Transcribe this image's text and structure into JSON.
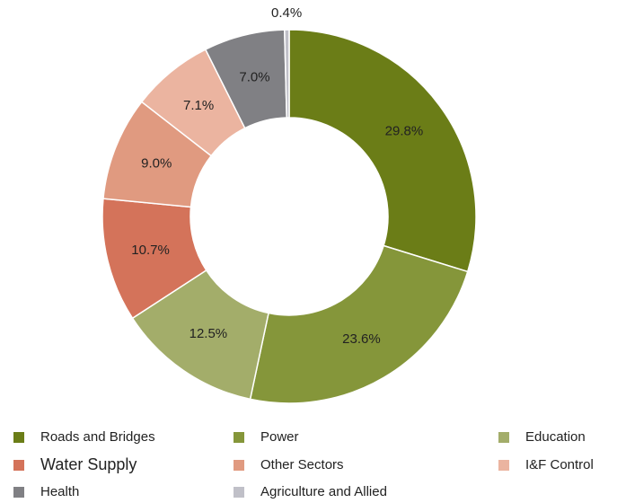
{
  "chart_data": {
    "type": "donut",
    "categories": [
      "Roads and Bridges",
      "Power",
      "Education",
      "Water Supply",
      "Other Sectors",
      "I&F Control",
      "Health",
      "Agriculture and Allied"
    ],
    "values": [
      29.8,
      23.6,
      12.5,
      10.7,
      9.0,
      7.1,
      7.0,
      0.4
    ],
    "value_labels": [
      "29.8%",
      "23.6%",
      "12.5%",
      "10.7%",
      "9.0%",
      "7.1%",
      "7.0%",
      "0.4%"
    ],
    "colors": [
      "#6b7d17",
      "#85963a",
      "#a3ad6a",
      "#d4735a",
      "#e09a80",
      "#ebb4a0",
      "#808084",
      "#c0c0c8"
    ],
    "legend": "bottom"
  }
}
